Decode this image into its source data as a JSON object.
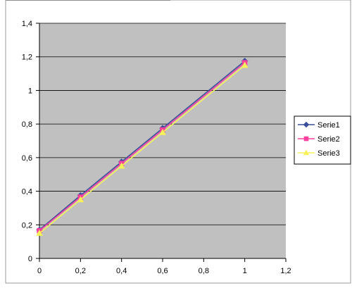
{
  "chart_data": {
    "type": "line",
    "xlim": [
      0,
      1.2
    ],
    "ylim": [
      0,
      1.4
    ],
    "xticks": [
      0,
      0.2,
      0.4,
      0.6,
      0.8,
      1,
      1.2
    ],
    "yticks": [
      0,
      0.2,
      0.4,
      0.6,
      0.8,
      1,
      1.2,
      1.4
    ],
    "xtick_labels": [
      "0",
      "0,2",
      "0,4",
      "0,6",
      "0,8",
      "1",
      "1,2"
    ],
    "ytick_labels": [
      "0",
      "0,2",
      "0,4",
      "0,6",
      "0,8",
      "1",
      "1,2",
      "1,4"
    ],
    "grid": "horizontal",
    "plot_background": "#c0c0c0",
    "legend_position": "right",
    "series": [
      {
        "name": "Serie1",
        "color": "#3a4f9c",
        "marker": "diamond",
        "x": [
          0,
          0.2,
          0.4,
          0.6,
          1
        ],
        "y": [
          0.17,
          0.375,
          0.575,
          0.775,
          1.175
        ]
      },
      {
        "name": "Serie2",
        "color": "#ff3f9f",
        "marker": "square",
        "x": [
          0,
          0.2,
          0.4,
          0.6,
          1
        ],
        "y": [
          0.165,
          0.365,
          0.565,
          0.765,
          1.165
        ]
      },
      {
        "name": "Serie3",
        "color": "#f7f25a",
        "marker": "triangle",
        "x": [
          0,
          0.2,
          0.4,
          0.6,
          1
        ],
        "y": [
          0.15,
          0.35,
          0.55,
          0.75,
          1.15
        ]
      }
    ]
  }
}
